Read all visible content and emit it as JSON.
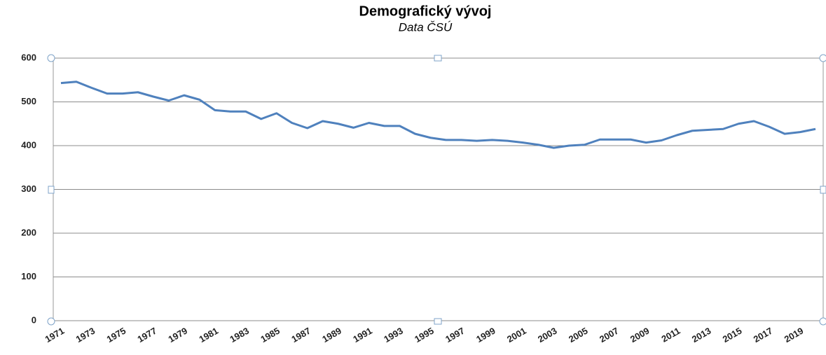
{
  "chart_data": {
    "type": "line",
    "title": "Demografický vývoj",
    "subtitle": "Data ČSÚ",
    "categories": [
      "1971",
      null,
      "1973",
      null,
      "1975",
      null,
      "1977",
      null,
      "1979",
      null,
      "1981",
      null,
      "1983",
      null,
      "1985",
      null,
      "1987",
      null,
      "1989",
      null,
      "1991",
      null,
      "1993",
      null,
      "1995",
      null,
      "1997",
      null,
      "1999",
      null,
      "2001",
      null,
      "2003",
      null,
      "2005",
      null,
      "2007",
      null,
      "2009",
      null,
      "2011",
      null,
      "2013",
      null,
      "2015",
      null,
      "2017",
      null,
      "2019",
      null
    ],
    "series": [
      {
        "color": "#4f81bd",
        "values": [
          543,
          546,
          532,
          519,
          519,
          522,
          512,
          503,
          515,
          505,
          481,
          478,
          478,
          461,
          474,
          452,
          440,
          456,
          450,
          441,
          452,
          445,
          445,
          427,
          418,
          413,
          413,
          411,
          413,
          411,
          407,
          402,
          395,
          400,
          402,
          414,
          414,
          414,
          407,
          412,
          424,
          434,
          436,
          438,
          450,
          456,
          443,
          427,
          431,
          438
        ]
      }
    ],
    "ylim": [
      0,
      600
    ],
    "yticks": [
      0,
      100,
      200,
      300,
      400,
      500,
      600
    ],
    "grid": true
  }
}
